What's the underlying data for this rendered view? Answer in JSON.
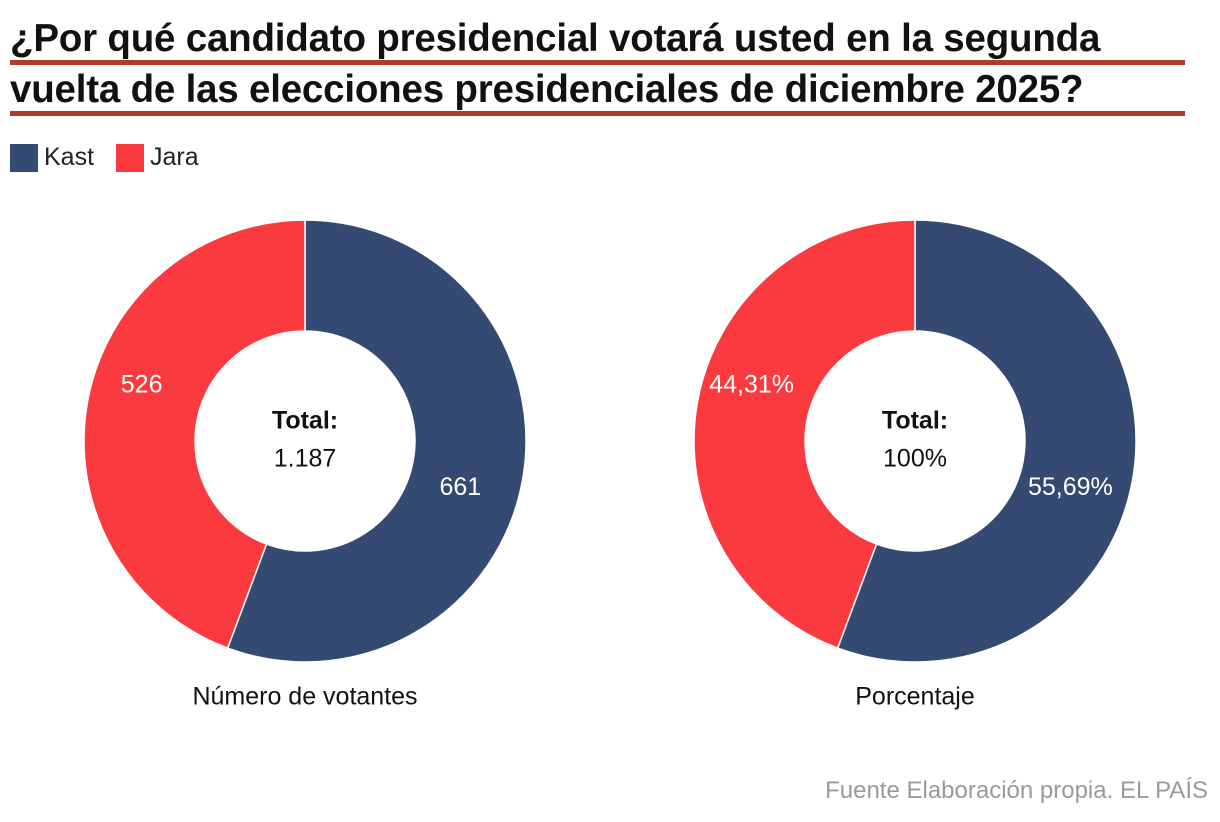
{
  "title": {
    "line1": "¿Por qué candidato presidencial votará usted en la segunda",
    "line2": "vuelta de las elecciones presidenciales de diciembre 2025?"
  },
  "legend": [
    {
      "name": "Kast",
      "color": "#344a72"
    },
    {
      "name": "Jara",
      "color": "#fa3a3e"
    }
  ],
  "chart_data": [
    {
      "type": "pie",
      "donut": true,
      "title": "Número de votantes",
      "categories": [
        "Kast",
        "Jara"
      ],
      "values": [
        661,
        526
      ],
      "labels": [
        "661",
        "526"
      ],
      "center_label": "Total:",
      "center_value": "1.187"
    },
    {
      "type": "pie",
      "donut": true,
      "title": "Porcentaje",
      "categories": [
        "Kast",
        "Jara"
      ],
      "values": [
        55.69,
        44.31
      ],
      "labels": [
        "55,69%",
        "44,31%"
      ],
      "center_label": "Total:",
      "center_value": "100%"
    }
  ],
  "footer": "Fuente Elaboración propia. EL PAÍS"
}
